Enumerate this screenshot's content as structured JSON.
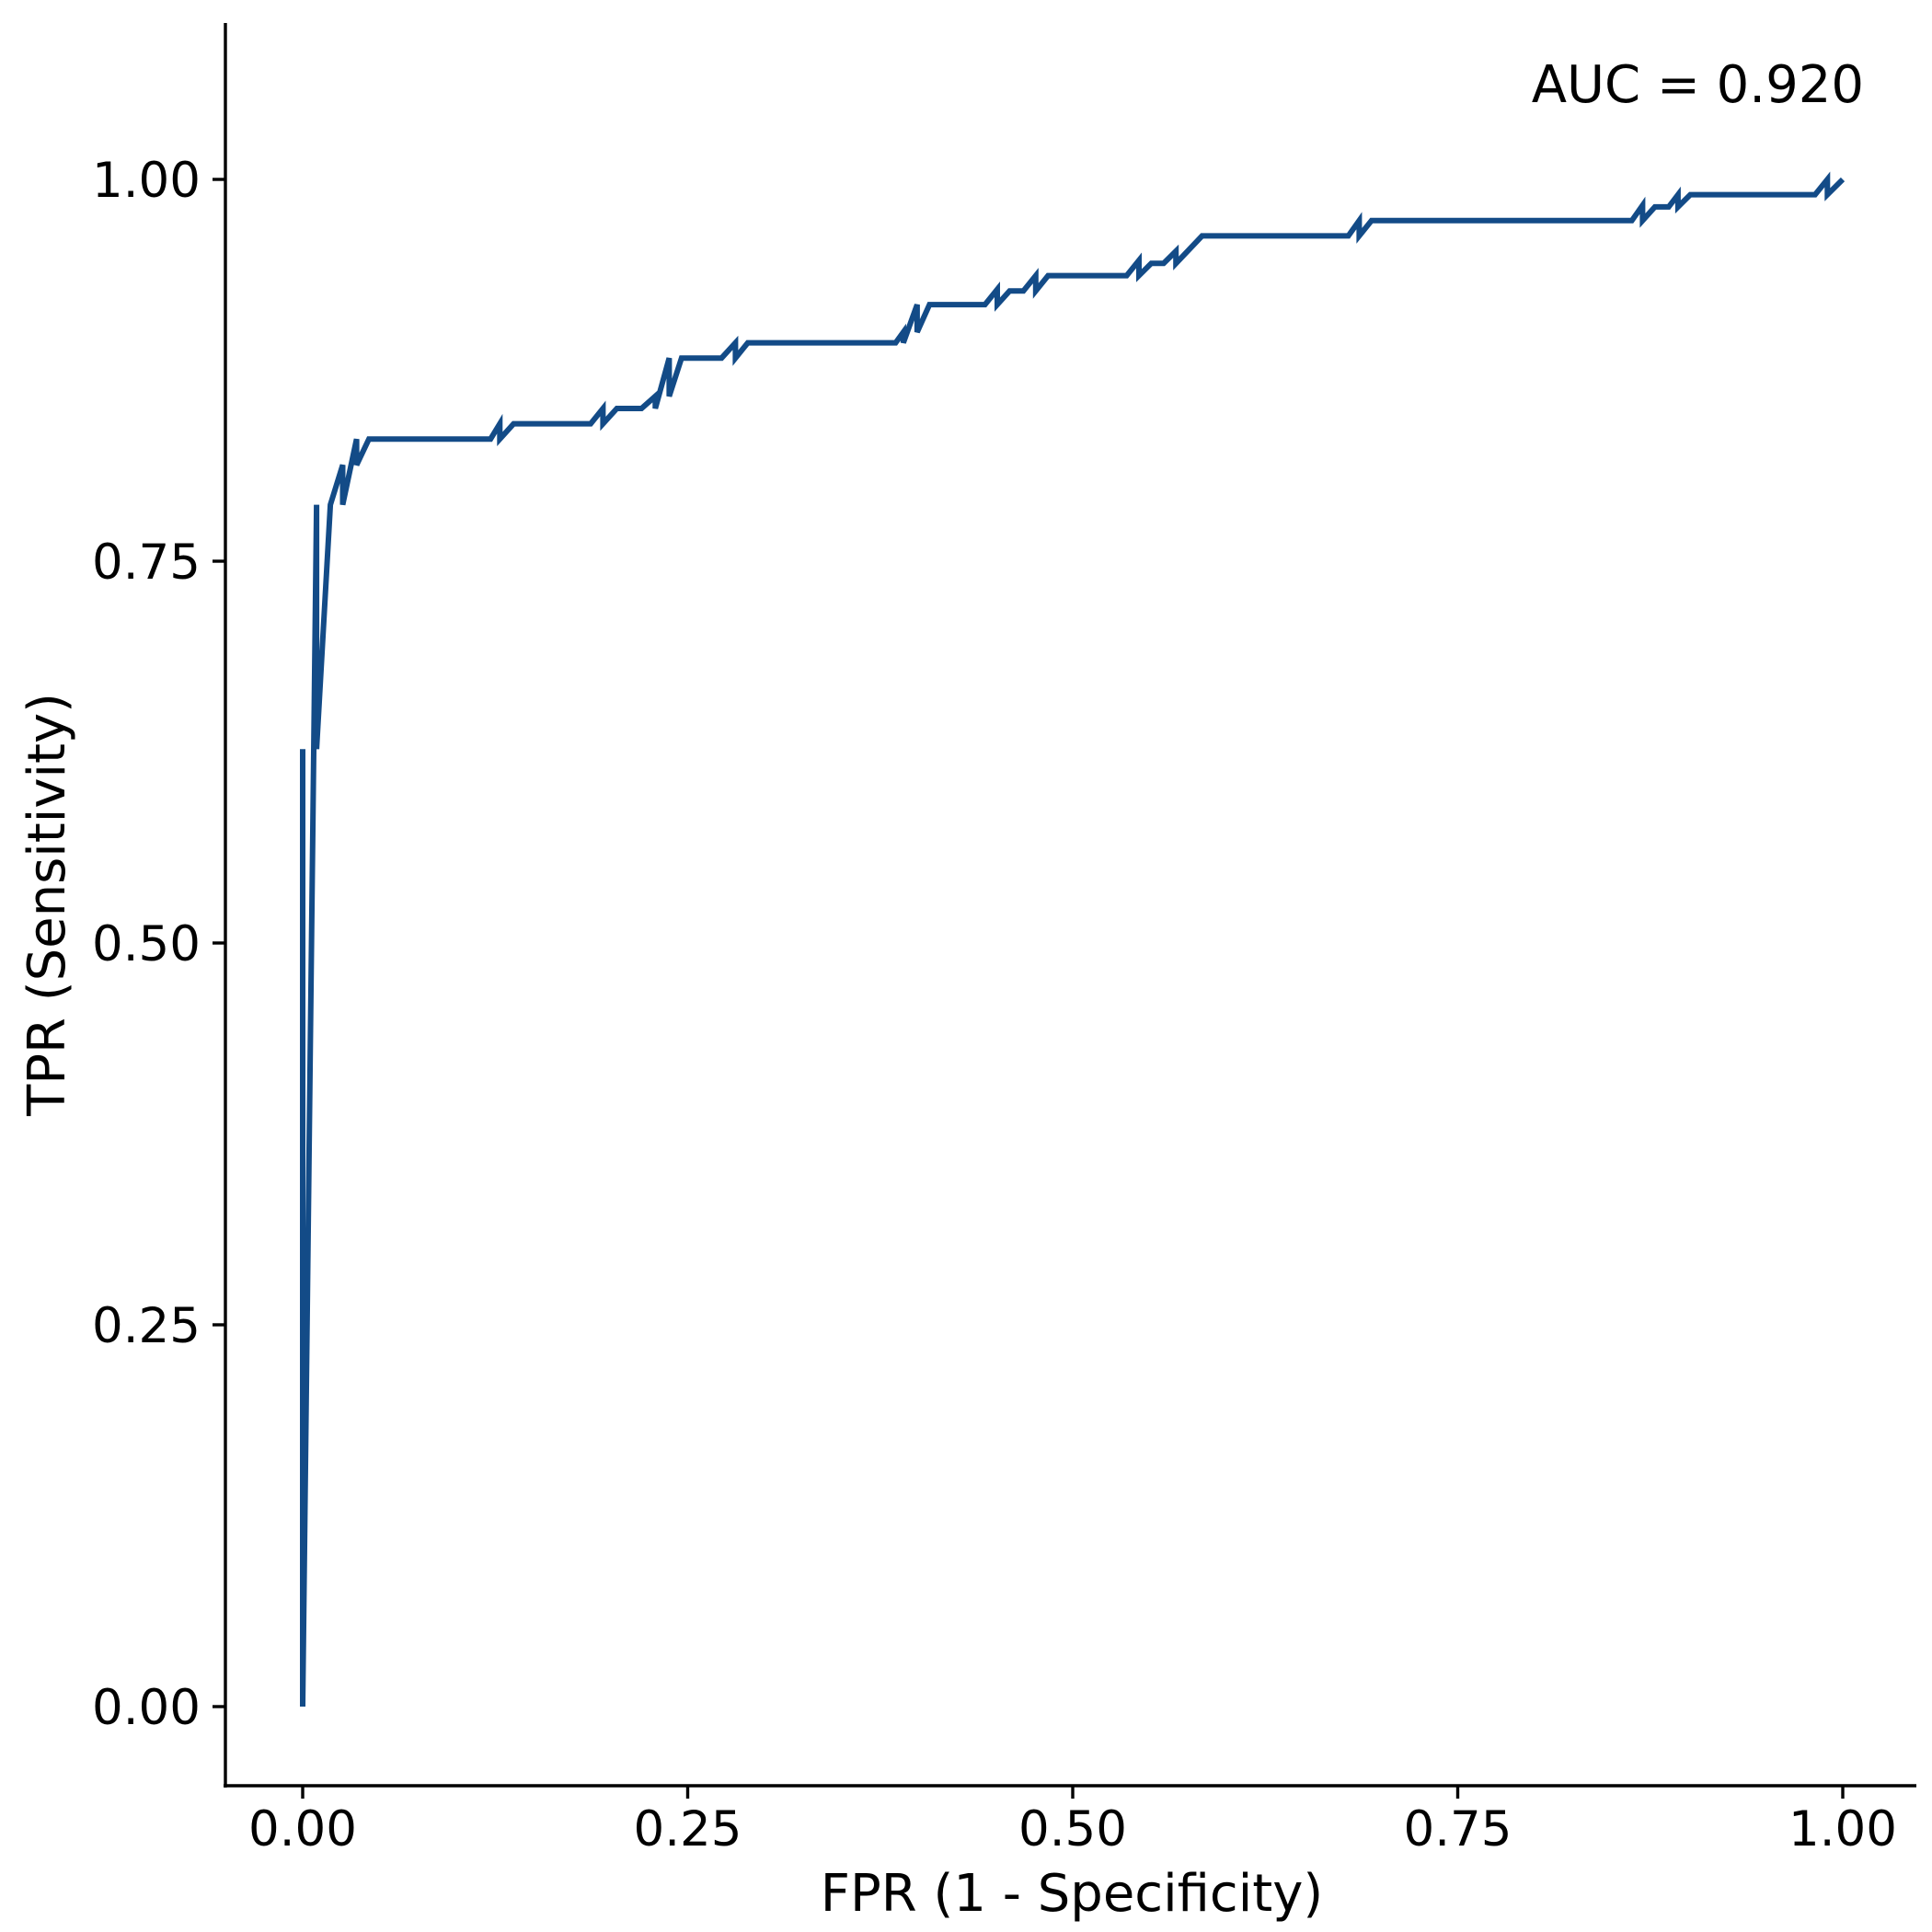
{
  "chart_data": {
    "type": "line",
    "xlabel": "FPR (1 - Specificity)",
    "ylabel": "TPR (Sensitivity)",
    "annotation": "AUC = 0.920",
    "xlim": [
      -0.05,
      1.05
    ],
    "ylim": [
      -0.05,
      1.05
    ],
    "xticks": [
      "0.00",
      "0.25",
      "0.50",
      "0.75",
      "1.00"
    ],
    "yticks": [
      "0.00",
      "0.25",
      "0.50",
      "0.75",
      "1.00"
    ],
    "grid": false,
    "line_color": "#134b87",
    "series": [
      {
        "x": [
          0.0,
          0.0,
          0.0,
          0.009,
          0.009,
          0.009,
          0.018,
          0.026,
          0.026,
          0.035,
          0.035,
          0.043,
          0.122,
          0.128,
          0.128,
          0.137,
          0.187,
          0.195,
          0.195,
          0.204,
          0.22,
          0.229,
          0.229,
          0.238,
          0.238,
          0.246,
          0.272,
          0.281,
          0.281,
          0.289,
          0.385,
          0.39,
          0.39,
          0.399,
          0.399,
          0.407,
          0.443,
          0.451,
          0.451,
          0.459,
          0.468,
          0.476,
          0.476,
          0.484,
          0.535,
          0.543,
          0.543,
          0.551,
          0.559,
          0.567,
          0.567,
          0.584,
          0.592,
          0.679,
          0.686,
          0.686,
          0.694,
          0.863,
          0.87,
          0.87,
          0.878,
          0.887,
          0.893,
          0.893,
          0.901,
          0.982,
          0.99,
          0.99,
          1.0
        ],
        "y": [
          0.0,
          0.627,
          0.0,
          0.787,
          0.627,
          0.627,
          0.787,
          0.813,
          0.787,
          0.83,
          0.813,
          0.83,
          0.83,
          0.84,
          0.83,
          0.84,
          0.84,
          0.85,
          0.84,
          0.85,
          0.85,
          0.858,
          0.85,
          0.883,
          0.858,
          0.883,
          0.883,
          0.893,
          0.883,
          0.893,
          0.893,
          0.9,
          0.893,
          0.918,
          0.9,
          0.918,
          0.918,
          0.928,
          0.918,
          0.927,
          0.927,
          0.937,
          0.927,
          0.937,
          0.937,
          0.947,
          0.937,
          0.945,
          0.945,
          0.953,
          0.945,
          0.963,
          0.963,
          0.963,
          0.973,
          0.963,
          0.973,
          0.973,
          0.983,
          0.973,
          0.982,
          0.982,
          0.99,
          0.982,
          0.99,
          0.99,
          1.0,
          0.99,
          1.0
        ]
      }
    ]
  }
}
